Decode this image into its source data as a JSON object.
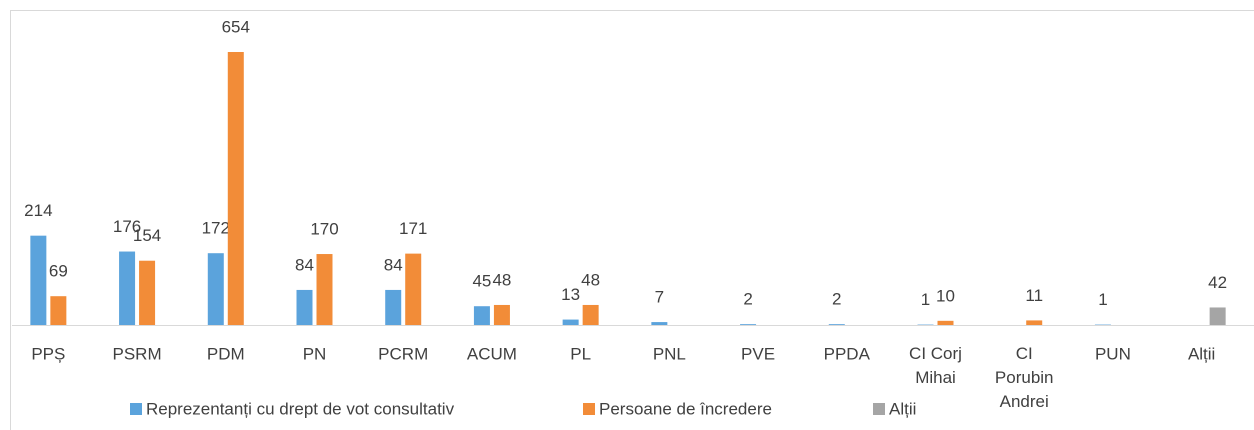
{
  "chart_data": {
    "type": "bar",
    "categories": [
      "PPȘ",
      "PSRM",
      "PDM",
      "PN",
      "PCRM",
      "ACUM",
      "PL",
      "PNL",
      "PVE",
      "PPDA",
      "CI Corj Mihai",
      "CI Porubin Andrei",
      "PUN",
      "Alții"
    ],
    "series": [
      {
        "name": "Reprezentanți cu drept de vot consultativ",
        "color": "#5ba3dc",
        "values": [
          214,
          176,
          172,
          84,
          84,
          45,
          13,
          7,
          2,
          2,
          1,
          null,
          1,
          null
        ]
      },
      {
        "name": "Persoane de încredere",
        "color": "#f28c38",
        "values": [
          69,
          154,
          654,
          170,
          171,
          48,
          48,
          null,
          null,
          null,
          10,
          11,
          null,
          null
        ]
      },
      {
        "name": "Alții",
        "color": "#a5a5a5",
        "values": [
          null,
          null,
          null,
          null,
          null,
          null,
          null,
          null,
          null,
          null,
          null,
          null,
          null,
          42
        ]
      }
    ],
    "legend": "bottom",
    "grid": false
  }
}
